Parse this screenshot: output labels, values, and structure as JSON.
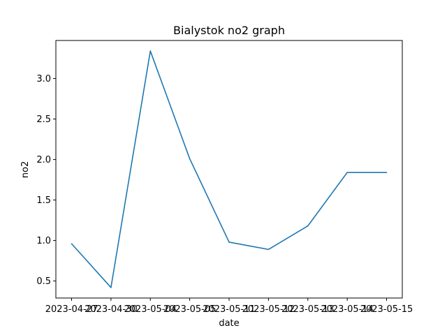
{
  "chart_data": {
    "type": "line",
    "title": "Bialystok no2 graph",
    "xlabel": "date",
    "ylabel": "no2",
    "categories": [
      "2023-04-27",
      "2023-04-30",
      "2023-05-04",
      "2023-05-05",
      "2023-05-11",
      "2023-05-12",
      "2023-05-13",
      "2023-05-14",
      "2023-05-15"
    ],
    "series": [
      {
        "values": [
          0.96,
          0.42,
          3.34,
          2.01,
          0.98,
          0.89,
          1.18,
          1.84,
          1.84
        ]
      }
    ],
    "yticks": [
      "0.5",
      "1.0",
      "1.5",
      "2.0",
      "2.5",
      "3.0"
    ],
    "ylim": [
      0.29,
      3.47
    ],
    "grid": false,
    "line_color": "#1f77b4"
  }
}
